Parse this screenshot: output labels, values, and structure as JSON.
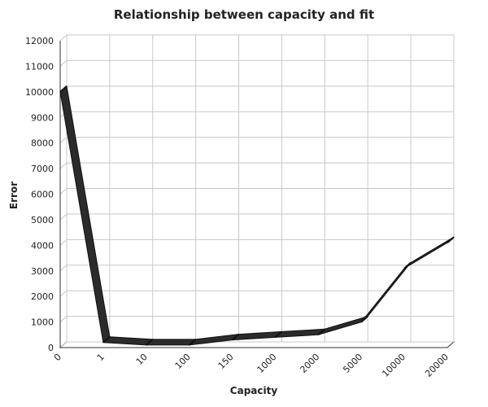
{
  "chart_data": {
    "type": "line",
    "title": "Relationship between capacity and fit",
    "xlabel": "Capacity",
    "ylabel": "Error",
    "categories": [
      "0",
      "1",
      "10",
      "100",
      "150",
      "1000",
      "2000",
      "5000",
      "10000",
      "20000"
    ],
    "values": [
      10000,
      200,
      100,
      100,
      300,
      400,
      500,
      1000,
      3100,
      4100
    ],
    "ylim": [
      0,
      12000
    ],
    "yticks": [
      "0",
      "1000",
      "2000",
      "3000",
      "4000",
      "5000",
      "6000",
      "7000",
      "8000",
      "9000",
      "10000",
      "11000",
      "12000"
    ],
    "grid": true,
    "legend": "none",
    "colors": {
      "line_top": "#2b2b2b",
      "line_side": "#111111",
      "grid": "#c8c8c8",
      "axis": "#333333"
    }
  }
}
